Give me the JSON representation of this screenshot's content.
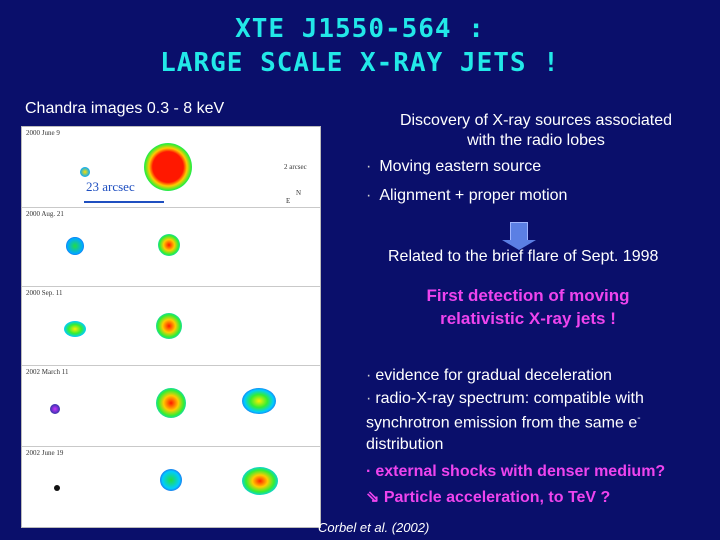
{
  "title": {
    "line1": "XTE J1550-564 :",
    "line2": "LARGE SCALE X-RAY JETS !"
  },
  "left": {
    "caption": "Chandra images 0.3 - 8 keV",
    "scale_label": "23 arcsec",
    "compass_scale": "2 arcsec",
    "compass_n": "N",
    "compass_e": "E",
    "panels": [
      {
        "date": "2000 June 9"
      },
      {
        "date": "2000 Aug. 21"
      },
      {
        "date": "2000 Sep. 11"
      },
      {
        "date": "2002 March 11"
      },
      {
        "date": "2002 June 19"
      }
    ]
  },
  "right": {
    "discovery_line1": "Discovery of X-ray sources associated",
    "discovery_line2": "with the radio lobes",
    "bullet_symbol": "·",
    "bullet1": "Moving eastern source",
    "bullet2": "Alignment + proper motion",
    "related": "Related to the brief flare of Sept. 1998",
    "first_line1": "First detection of moving",
    "first_line2": "relativistic X-ray jets !",
    "evidence1": "evidence for gradual deceleration",
    "evidence2": "radio-X-ray spectrum: compatible with",
    "evidence3": "synchrotron emission from the same e",
    "evidence3_sup": "-",
    "evidence4": "distribution",
    "shocks": "external shocks with denser medium?",
    "accel_arrow": "⇘",
    "accel": "Particle acceleration, to TeV ?"
  },
  "citation": "Corbel et al. (2002)",
  "colors": {
    "background": "#0a0f6b",
    "title": "#22e8e8",
    "highlight": "#ee44ee",
    "arrow": "#5b7fe4"
  }
}
